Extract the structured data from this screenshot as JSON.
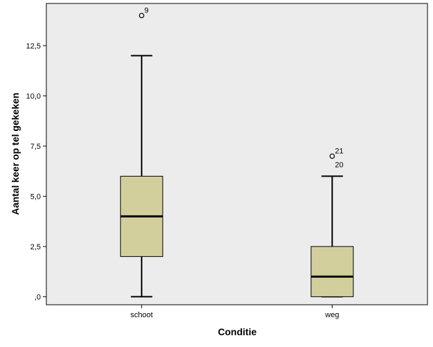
{
  "chart_data": {
    "type": "boxplot",
    "xlabel": "Conditie",
    "ylabel": "Aantal keer op tel gekeken",
    "ylim": [
      -0.4,
      14.6
    ],
    "yticks": [
      0,
      2.5,
      5,
      7.5,
      10,
      12.5
    ],
    "ytick_labels": [
      ",0",
      "2,5",
      "5,0",
      "7,5",
      "10,0",
      "12,5"
    ],
    "grid": false,
    "colors": {
      "plot_bg": "#ececec",
      "box_fill": "#d3cf9d",
      "stroke": "#000000"
    },
    "groups": [
      {
        "category": "schoot",
        "whisker_low": 0,
        "q1": 2,
        "median": 4,
        "q3": 6,
        "whisker_high": 12,
        "outliers": [
          {
            "value": 14,
            "labels": [
              "9"
            ]
          }
        ]
      },
      {
        "category": "weg",
        "whisker_low": 0,
        "q1": 0,
        "median": 1,
        "q3": 2.5,
        "whisker_high": 6,
        "outliers": [
          {
            "value": 7,
            "labels": [
              "21",
              "20"
            ]
          }
        ]
      }
    ]
  }
}
